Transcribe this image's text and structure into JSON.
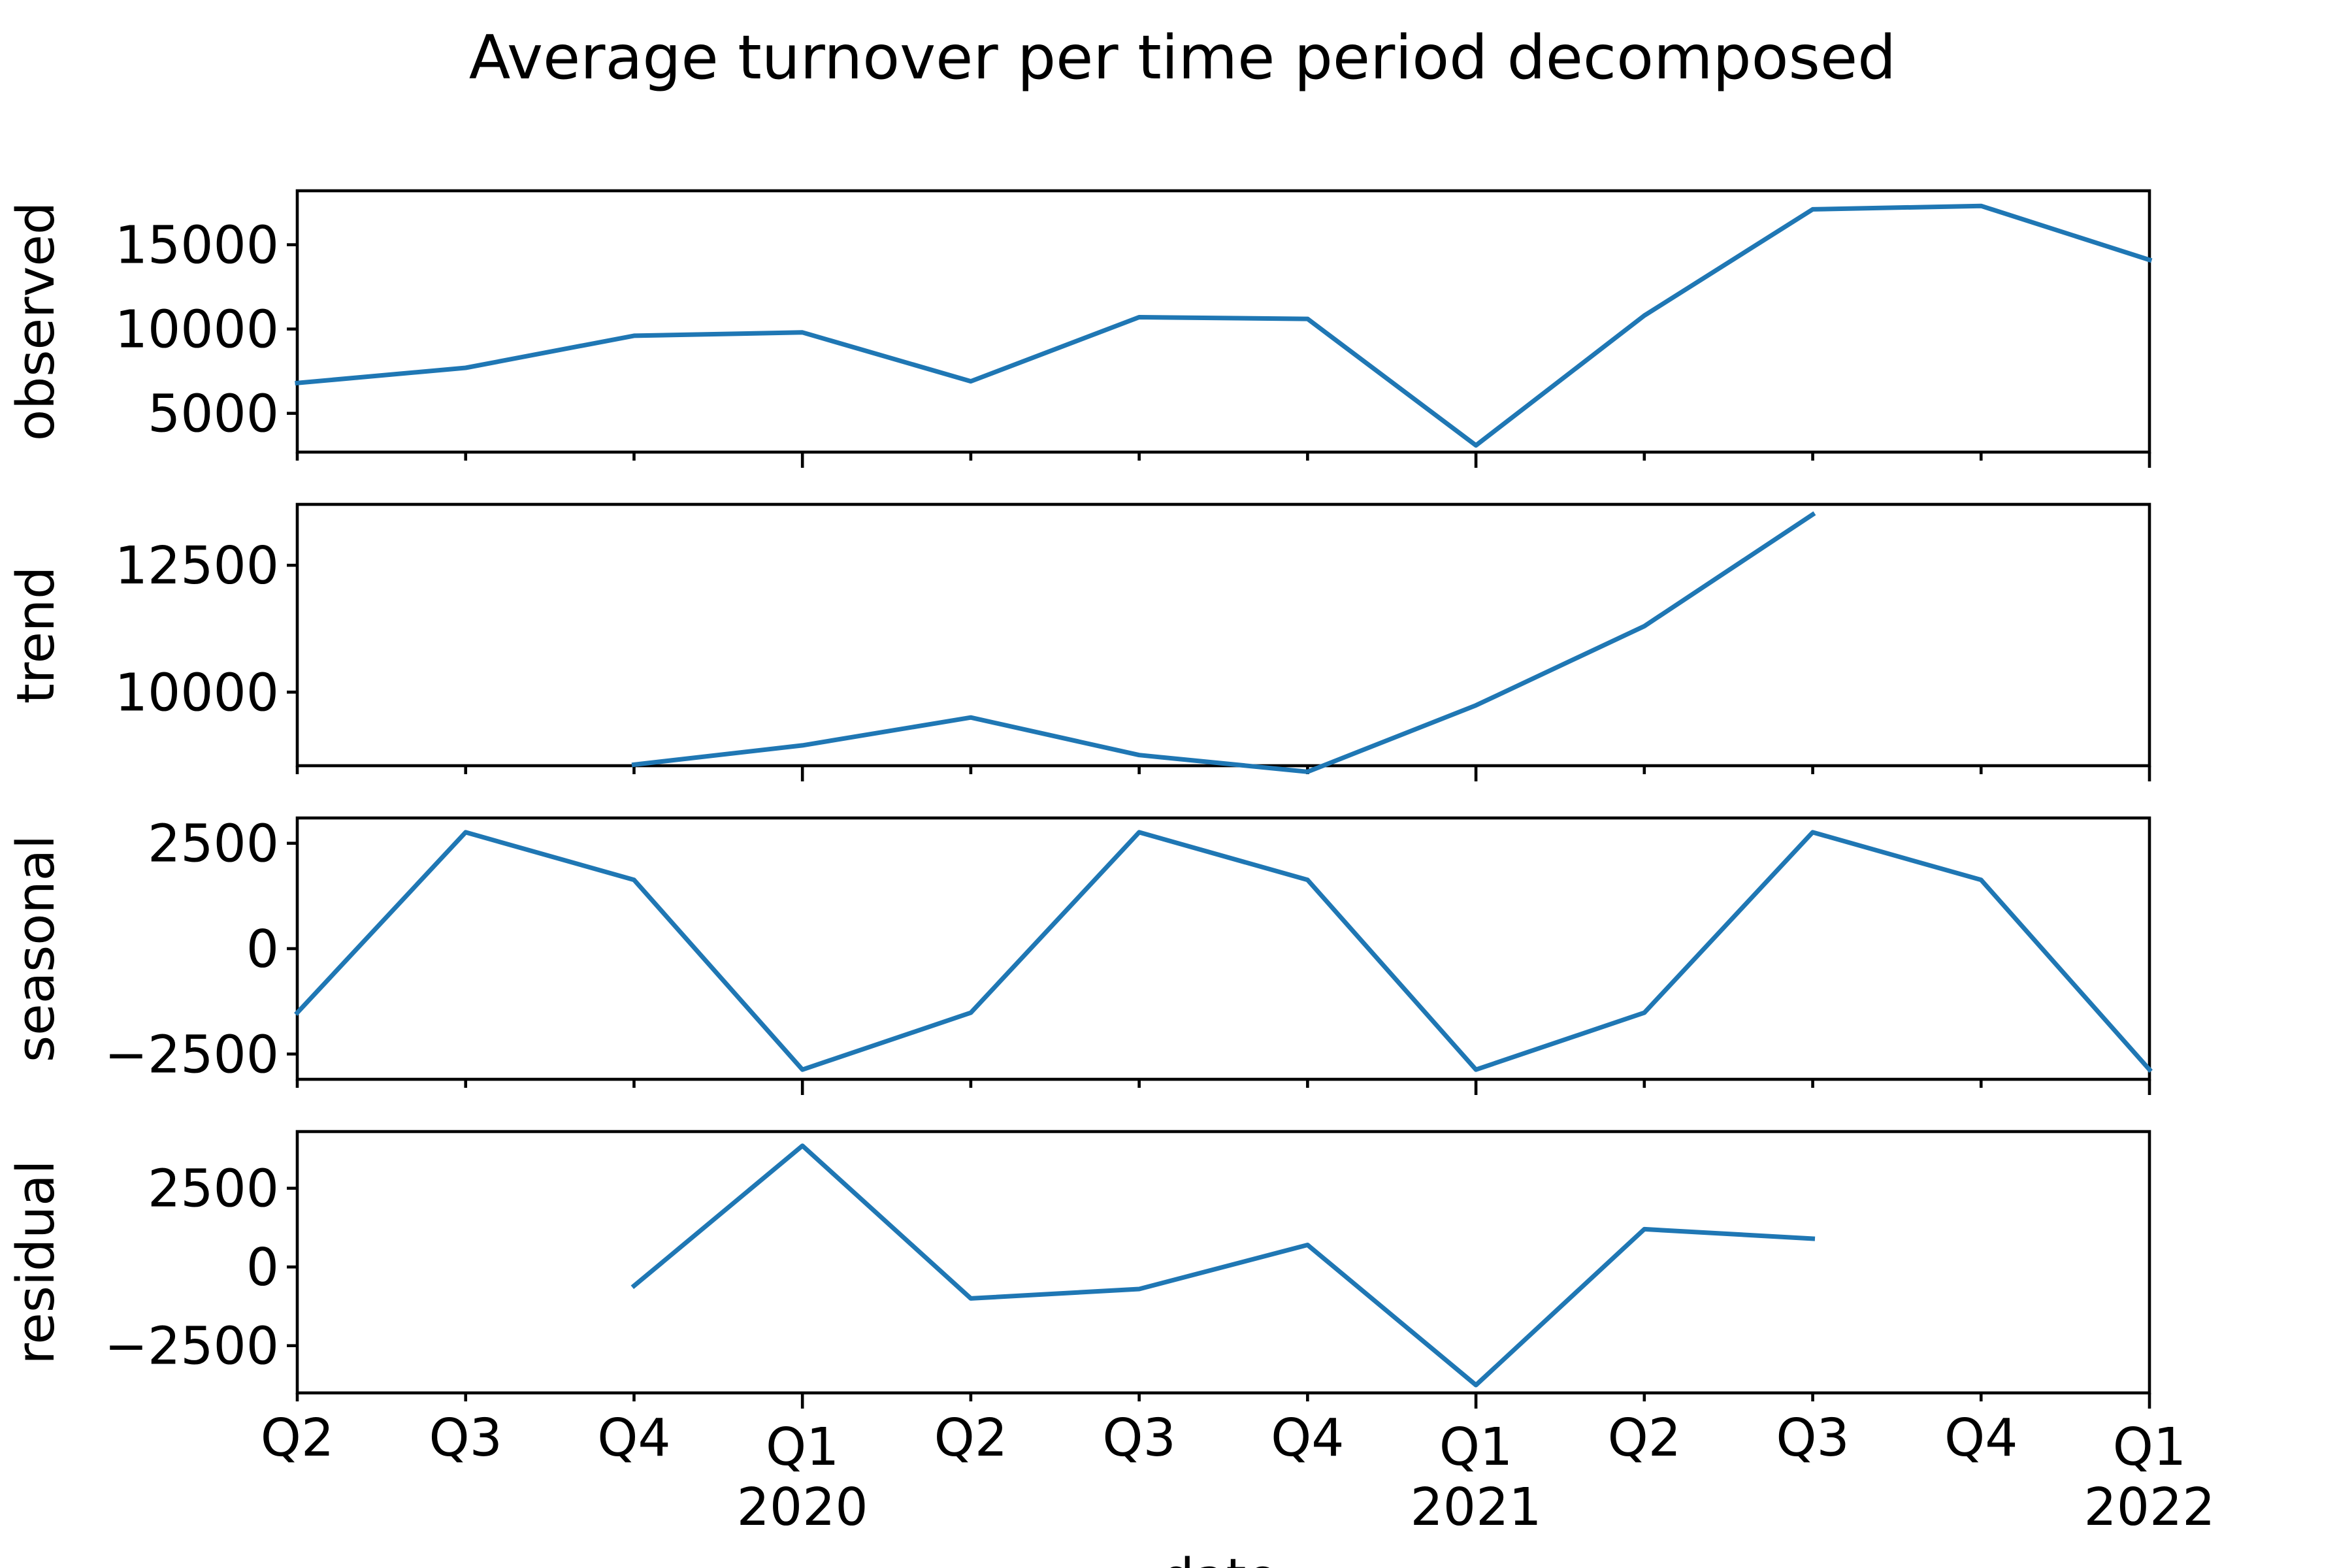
{
  "chart_data": {
    "type": "line",
    "title": "Average turnover per time period decomposed",
    "xlabel": "date",
    "line_color": "#1f77b4",
    "x_categories": [
      "2019-Q2",
      "2019-Q3",
      "2019-Q4",
      "2020-Q1",
      "2020-Q2",
      "2020-Q3",
      "2020-Q4",
      "2021-Q1",
      "2021-Q2",
      "2021-Q3",
      "2021-Q4",
      "2022-Q1"
    ],
    "x_tick_labels": [
      {
        "quarter": "Q2",
        "year": ""
      },
      {
        "quarter": "Q3",
        "year": ""
      },
      {
        "quarter": "Q4",
        "year": ""
      },
      {
        "quarter": "Q1",
        "year": "2020"
      },
      {
        "quarter": "Q2",
        "year": ""
      },
      {
        "quarter": "Q3",
        "year": ""
      },
      {
        "quarter": "Q4",
        "year": ""
      },
      {
        "quarter": "Q1",
        "year": "2021"
      },
      {
        "quarter": "Q2",
        "year": ""
      },
      {
        "quarter": "Q3",
        "year": ""
      },
      {
        "quarter": "Q4",
        "year": ""
      },
      {
        "quarter": "Q1",
        "year": "2022"
      }
    ],
    "panels": [
      {
        "name": "observed",
        "ylabel": "observed",
        "ylim": [
          2700,
          18200
        ],
        "yticks": [
          5000,
          10000,
          15000
        ],
        "ytick_labels": [
          "5000",
          "10000",
          "15000"
        ],
        "values": [
          6800,
          7700,
          9600,
          9800,
          6900,
          10700,
          10600,
          3100,
          10800,
          17100,
          17300,
          14100
        ]
      },
      {
        "name": "trend",
        "ylabel": "trend",
        "ylim": [
          8550,
          13700
        ],
        "yticks": [
          10000,
          12500
        ],
        "ytick_labels": [
          "10000",
          "12500"
        ],
        "values": [
          null,
          null,
          8570,
          8950,
          9500,
          8760,
          8430,
          9740,
          11300,
          13500,
          null,
          null
        ]
      },
      {
        "name": "seasonal",
        "ylabel": "seasonal",
        "ylim": [
          -3100,
          3100
        ],
        "yticks": [
          -2500,
          0,
          2500
        ],
        "ytick_labels": [
          "−2500",
          "0",
          "2500"
        ],
        "values": [
          -1520,
          2760,
          1630,
          -2870,
          -1520,
          2760,
          1630,
          -2870,
          -1520,
          2760,
          1630,
          -2870
        ]
      },
      {
        "name": "residual",
        "ylabel": "residual",
        "ylim": [
          -4000,
          4300
        ],
        "yticks": [
          -2500,
          0,
          2500
        ],
        "ytick_labels": [
          "−2500",
          "0",
          "2500"
        ],
        "values": [
          null,
          null,
          -600,
          3850,
          -1000,
          -700,
          700,
          -3750,
          1200,
          900,
          null,
          null
        ]
      }
    ]
  }
}
